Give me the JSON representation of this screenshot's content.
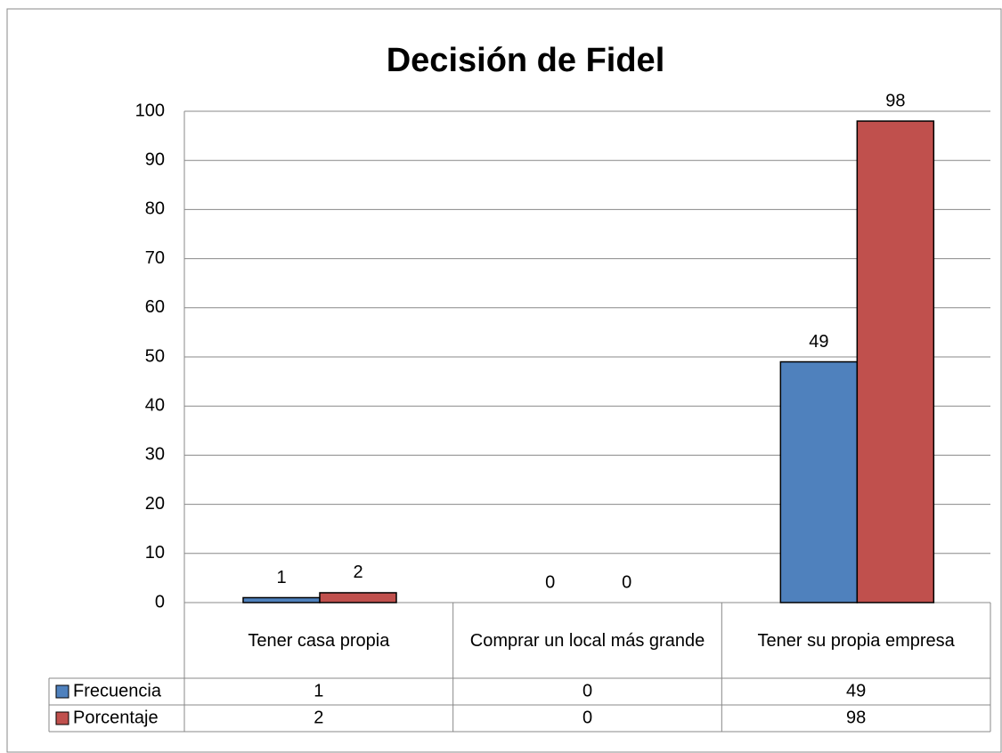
{
  "chart_data": {
    "type": "bar",
    "title": "Decisión de Fidel",
    "categories": [
      "Tener casa propia",
      "Comprar  un local más grande",
      "Tener su propia empresa"
    ],
    "series": [
      {
        "name": "Frecuencia",
        "color": "#4f81bd",
        "values": [
          1,
          0,
          49
        ]
      },
      {
        "name": "Porcentaje",
        "color": "#c0504d",
        "values": [
          2,
          0,
          98
        ]
      }
    ],
    "ylim": [
      0,
      100
    ],
    "yticks": [
      0,
      10,
      20,
      30,
      40,
      50,
      60,
      70,
      80,
      90,
      100
    ],
    "grid": true
  }
}
